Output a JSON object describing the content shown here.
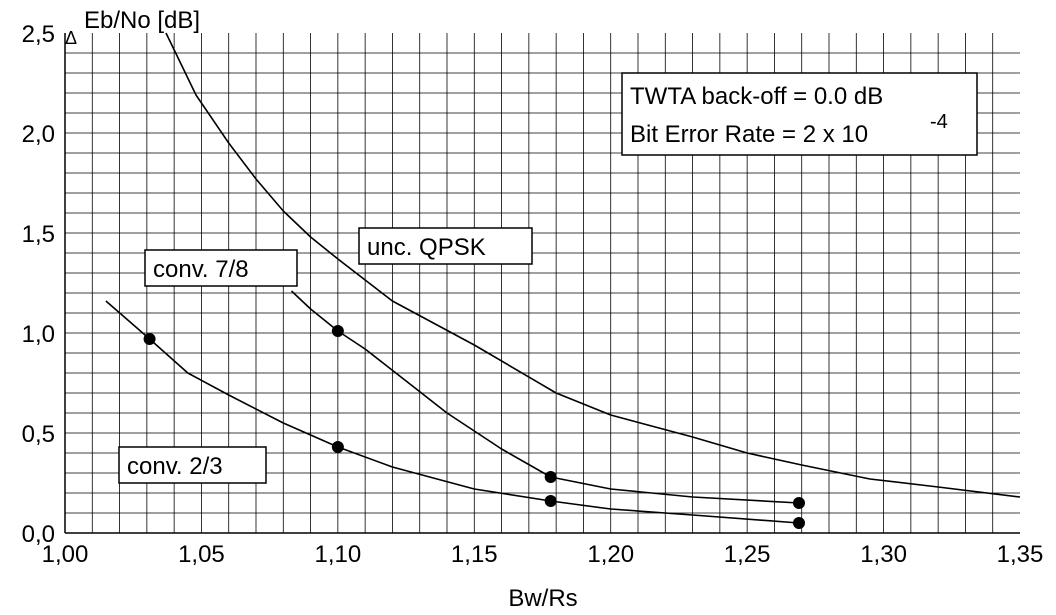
{
  "chart_data": {
    "type": "line",
    "xlabel": "Bw/Rs",
    "ylabel_delta": "Δ",
    "ylabel": "Eb/No [dB]",
    "xlim": [
      1.0,
      1.35
    ],
    "ylim": [
      0.0,
      2.5
    ],
    "x_ticks": [
      "1,00",
      "1,05",
      "1,10",
      "1,15",
      "1,20",
      "1,25",
      "1,30",
      "1,35"
    ],
    "y_ticks": [
      "0,0",
      "0,5",
      "1,0",
      "1,5",
      "2,0",
      "2,5"
    ],
    "x_tick_values": [
      1.0,
      1.05,
      1.1,
      1.15,
      1.2,
      1.25,
      1.3,
      1.35
    ],
    "y_tick_values": [
      0.0,
      0.5,
      1.0,
      1.5,
      2.0,
      2.5
    ],
    "grid": true,
    "grid_minor_x_step": 0.01,
    "grid_minor_y_step": 0.1,
    "info_box": {
      "line1": "TWTA back-off = 0.0 dB",
      "line2_base": "Bit Error Rate = 2 x 10",
      "line2_exp": "-4"
    },
    "series": [
      {
        "name": "unc. QPSK",
        "x": [
          1.037,
          1.048,
          1.06,
          1.07,
          1.08,
          1.09,
          1.1,
          1.12,
          1.15,
          1.18,
          1.2,
          1.23,
          1.25,
          1.27,
          1.295,
          1.32,
          1.35
        ],
        "y": [
          2.5,
          2.19,
          1.95,
          1.77,
          1.61,
          1.48,
          1.37,
          1.16,
          0.94,
          0.7,
          0.59,
          0.48,
          0.4,
          0.34,
          0.27,
          0.23,
          0.18
        ],
        "markers": [],
        "marker_y": []
      },
      {
        "name": "conv. 7/8",
        "x": [
          1.083,
          1.09,
          1.1,
          1.11,
          1.125,
          1.14,
          1.16,
          1.178,
          1.2,
          1.23,
          1.269
        ],
        "y": [
          1.21,
          1.12,
          1.01,
          0.92,
          0.76,
          0.6,
          0.42,
          0.28,
          0.22,
          0.18,
          0.15
        ],
        "markers": [
          1.1,
          1.178,
          1.269
        ],
        "marker_y": [
          1.01,
          0.28,
          0.15
        ]
      },
      {
        "name": "conv. 2/3",
        "x": [
          1.015,
          1.031,
          1.045,
          1.06,
          1.08,
          1.1,
          1.12,
          1.15,
          1.178,
          1.2,
          1.23,
          1.269
        ],
        "y": [
          1.16,
          0.97,
          0.8,
          0.69,
          0.55,
          0.43,
          0.33,
          0.22,
          0.16,
          0.12,
          0.09,
          0.05
        ],
        "markers": [
          1.031,
          1.1,
          1.178,
          1.269
        ],
        "marker_y": [
          0.97,
          0.43,
          0.16,
          0.05
        ]
      }
    ],
    "series_labels": [
      {
        "series": 0,
        "text": "unc. QPSK"
      },
      {
        "series": 1,
        "text": "conv. 7/8"
      },
      {
        "series": 2,
        "text": "conv. 2/3"
      }
    ]
  }
}
